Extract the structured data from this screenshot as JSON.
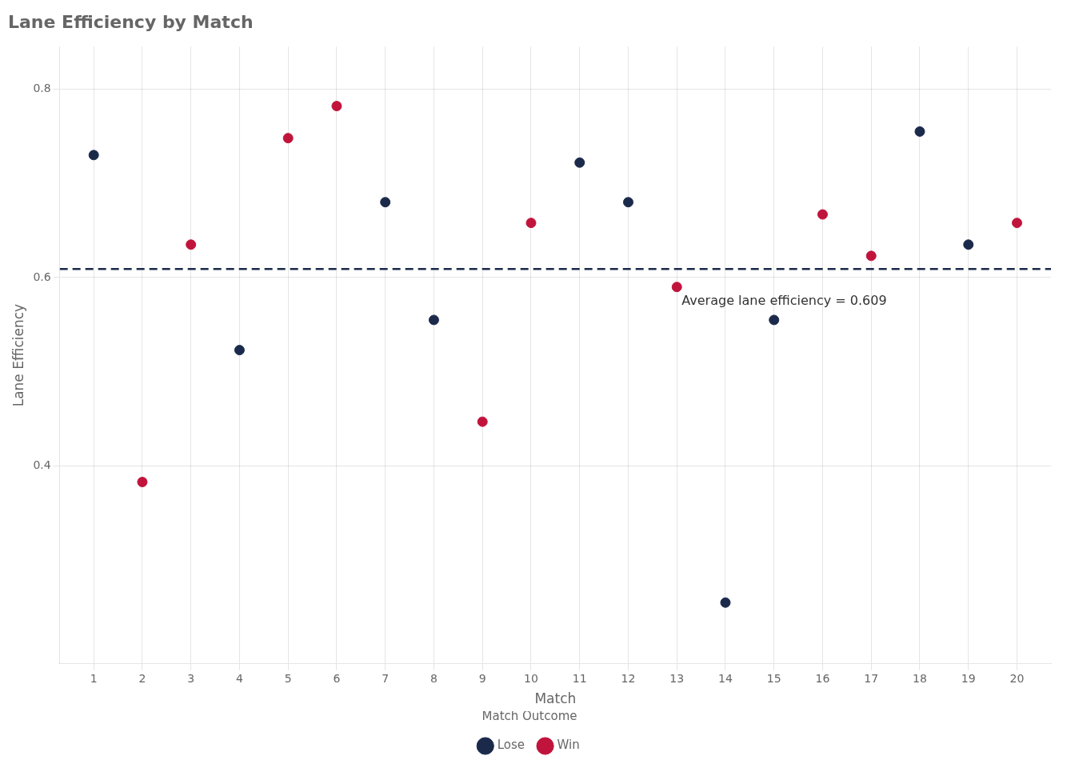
{
  "chart_data": {
    "type": "scatter",
    "title": "Lane Efficiency by Match",
    "xlabel": "Match",
    "ylabel": "Lane Efficiency",
    "series": [
      {
        "name": "Lose",
        "color": "#1B2A4A",
        "x": [
          1,
          4,
          7,
          8,
          11,
          12,
          14,
          15,
          18,
          19
        ],
        "values": [
          0.73,
          0.523,
          0.68,
          0.555,
          0.722,
          0.68,
          0.255,
          0.555,
          0.755,
          0.635
        ]
      },
      {
        "name": "Win",
        "color": "#C0143C",
        "x": [
          2,
          3,
          5,
          6,
          9,
          10,
          13,
          16,
          17,
          20
        ],
        "values": [
          0.383,
          0.635,
          0.748,
          0.782,
          0.447,
          0.658,
          0.59,
          0.667,
          0.623,
          0.658
        ]
      }
    ],
    "hlines": [
      {
        "y": 0.609,
        "color": "#1B2A4A",
        "line_style": "dashed"
      }
    ],
    "annotations": [
      {
        "text": "Average lane efficiency = 0.609",
        "x": 13.1,
        "y": 0.575
      }
    ],
    "xlim": [
      0.3,
      20.7
    ],
    "xticks": [
      1,
      2,
      3,
      4,
      5,
      6,
      7,
      8,
      9,
      10,
      11,
      12,
      13,
      14,
      15,
      16,
      17,
      18,
      19,
      20
    ],
    "ylim": [
      0.19,
      0.845
    ],
    "yticks": [
      0.4,
      0.6,
      0.8
    ],
    "grid": true,
    "legend": "bottom",
    "legend_title": "Match Outcome"
  }
}
